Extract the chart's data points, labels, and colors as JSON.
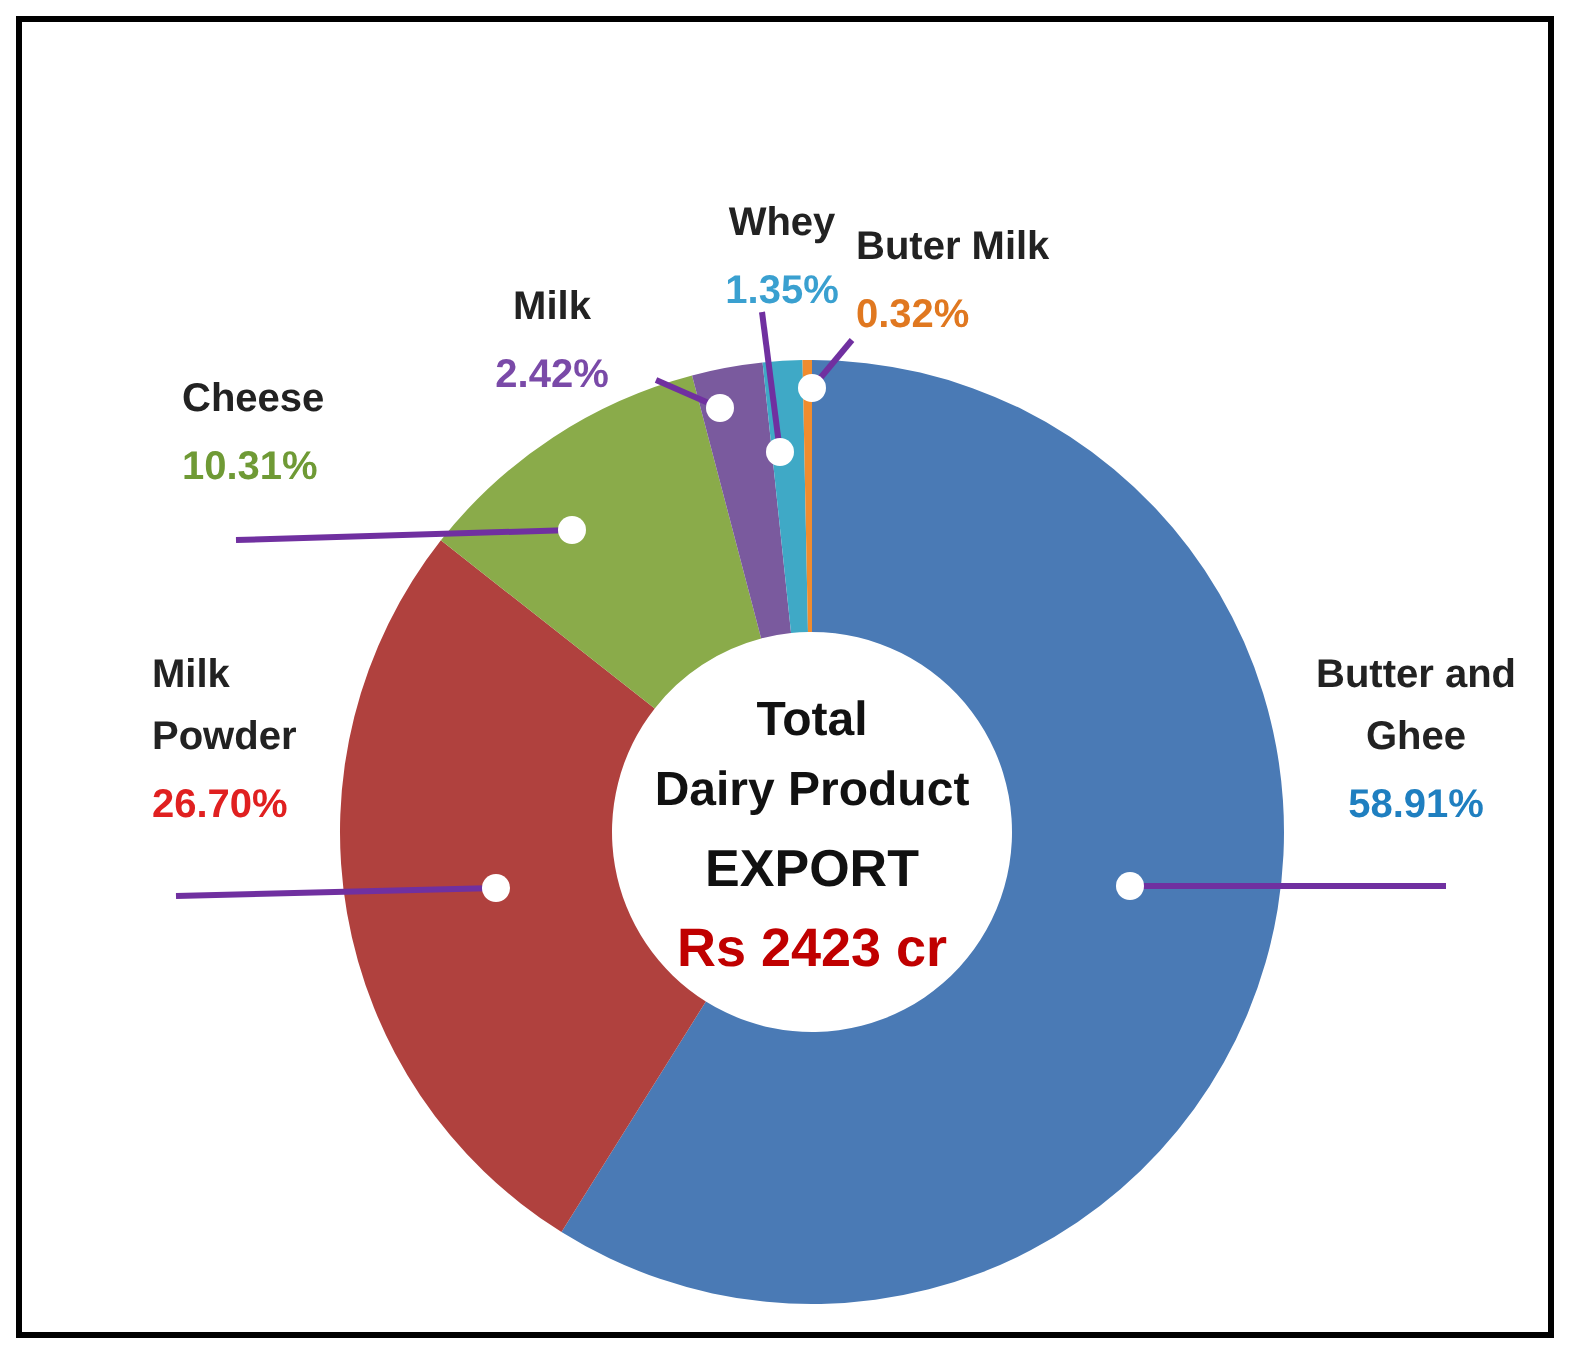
{
  "chart_data": {
    "type": "donut",
    "categories": [
      "Butter and Ghee",
      "Milk Powder",
      "Cheese",
      "Milk",
      "Whey",
      "Buter Milk"
    ],
    "values": [
      58.91,
      26.7,
      10.31,
      2.42,
      1.35,
      0.32
    ],
    "colors": [
      "#4a7ab5",
      "#b0413e",
      "#8aab4a",
      "#7a5a9e",
      "#3fa9c6",
      "#f08c2e"
    ],
    "value_labels": [
      "58.91%",
      "26.70%",
      "10.31%",
      "2.42%",
      "1.35%",
      "0.32%"
    ],
    "annotations": [
      "Total",
      "Dairy Product",
      "EXPORT",
      "Rs 2423 cr"
    ]
  }
}
